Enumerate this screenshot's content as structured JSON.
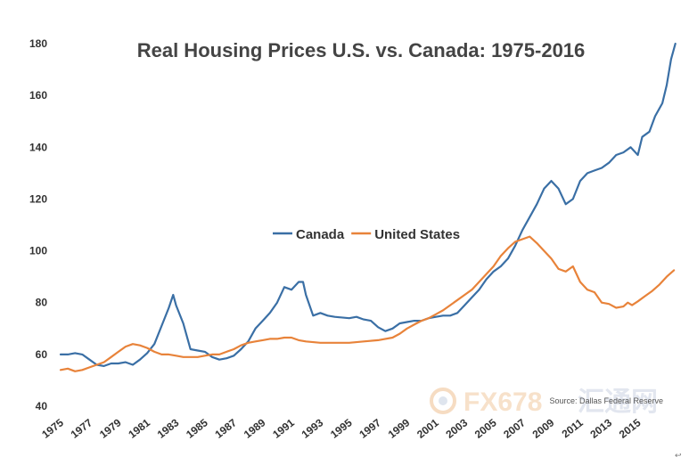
{
  "chart_data": {
    "type": "line",
    "title": "Real Housing Prices U.S. vs. Canada: 1975-2016",
    "xlabel": "",
    "ylabel": "",
    "xlim": [
      1975,
      2017
    ],
    "ylim": [
      40,
      180
    ],
    "y_ticks": [
      40,
      60,
      80,
      100,
      120,
      140,
      160,
      180
    ],
    "x_ticks": [
      1975,
      1977,
      1979,
      1981,
      1983,
      1985,
      1987,
      1989,
      1991,
      1993,
      1995,
      1997,
      1999,
      2001,
      2003,
      2005,
      2007,
      2009,
      2011,
      2013,
      2015
    ],
    "x_tick_labels": [
      "1975",
      "1977",
      "1979",
      "1981",
      "1983",
      "1985",
      "1987",
      "1989",
      "1991",
      "1993",
      "1995",
      "1997",
      "1999",
      "2001",
      "2003",
      "2005",
      "2007",
      "2009",
      "2011",
      "2013",
      "2015"
    ],
    "grid": false,
    "legend_position": "center",
    "source": "Source: Dallas Federal Reserve",
    "series": [
      {
        "name": "Canada",
        "color": "#3a6fa5",
        "points": [
          [
            1975.0,
            60
          ],
          [
            1975.5,
            60
          ],
          [
            1976.0,
            60.5
          ],
          [
            1976.5,
            60
          ],
          [
            1977.0,
            58
          ],
          [
            1977.5,
            56
          ],
          [
            1978.0,
            55.5
          ],
          [
            1978.5,
            56.5
          ],
          [
            1979.0,
            56.5
          ],
          [
            1979.5,
            57
          ],
          [
            1980.0,
            56
          ],
          [
            1980.5,
            58
          ],
          [
            1981.0,
            60.5
          ],
          [
            1981.5,
            64
          ],
          [
            1982.0,
            71
          ],
          [
            1982.5,
            78
          ],
          [
            1982.8,
            83
          ],
          [
            1983.0,
            79
          ],
          [
            1983.5,
            72
          ],
          [
            1984.0,
            62
          ],
          [
            1984.5,
            61.5
          ],
          [
            1985.0,
            61
          ],
          [
            1985.5,
            59
          ],
          [
            1986.0,
            58
          ],
          [
            1986.5,
            58.5
          ],
          [
            1987.0,
            59.5
          ],
          [
            1987.5,
            62
          ],
          [
            1988.0,
            65
          ],
          [
            1988.5,
            70
          ],
          [
            1989.0,
            73
          ],
          [
            1989.5,
            76
          ],
          [
            1990.0,
            80
          ],
          [
            1990.5,
            86
          ],
          [
            1991.0,
            85
          ],
          [
            1991.5,
            88
          ],
          [
            1991.8,
            88
          ],
          [
            1992.0,
            83
          ],
          [
            1992.5,
            75
          ],
          [
            1993.0,
            76
          ],
          [
            1993.5,
            75
          ],
          [
            1994.0,
            74.5
          ],
          [
            1995.0,
            74
          ],
          [
            1995.5,
            74.5
          ],
          [
            1996.0,
            73.5
          ],
          [
            1996.5,
            73
          ],
          [
            1997.0,
            70.5
          ],
          [
            1997.5,
            69
          ],
          [
            1998.0,
            70
          ],
          [
            1998.5,
            72
          ],
          [
            1999.0,
            72.5
          ],
          [
            1999.5,
            73
          ],
          [
            2000.0,
            73
          ],
          [
            2000.5,
            74
          ],
          [
            2001.0,
            74.5
          ],
          [
            2001.5,
            75
          ],
          [
            2002.0,
            75
          ],
          [
            2002.5,
            76
          ],
          [
            2003.0,
            79
          ],
          [
            2003.5,
            82
          ],
          [
            2004.0,
            85
          ],
          [
            2004.5,
            89
          ],
          [
            2005.0,
            92
          ],
          [
            2005.5,
            94
          ],
          [
            2006.0,
            97
          ],
          [
            2006.5,
            102
          ],
          [
            2007.0,
            108
          ],
          [
            2007.5,
            113
          ],
          [
            2008.0,
            118
          ],
          [
            2008.5,
            124
          ],
          [
            2009.0,
            127
          ],
          [
            2009.5,
            124
          ],
          [
            2010.0,
            118
          ],
          [
            2010.5,
            120
          ],
          [
            2011.0,
            127
          ],
          [
            2011.5,
            130
          ],
          [
            2012.0,
            131
          ],
          [
            2012.5,
            132
          ],
          [
            2013.0,
            134
          ],
          [
            2013.5,
            137
          ],
          [
            2014.0,
            138
          ],
          [
            2014.5,
            140
          ],
          [
            2015.0,
            137
          ],
          [
            2015.3,
            144
          ],
          [
            2015.8,
            146
          ],
          [
            2016.2,
            152
          ],
          [
            2016.7,
            157
          ],
          [
            2017.0,
            164
          ],
          [
            2017.3,
            174
          ],
          [
            2017.6,
            180
          ]
        ]
      },
      {
        "name": "United States",
        "color": "#e8833a",
        "points": [
          [
            1975.0,
            54
          ],
          [
            1975.5,
            54.5
          ],
          [
            1976.0,
            53.5
          ],
          [
            1976.5,
            54
          ],
          [
            1977.0,
            55
          ],
          [
            1977.5,
            56
          ],
          [
            1978.0,
            57
          ],
          [
            1978.5,
            59
          ],
          [
            1979.0,
            61
          ],
          [
            1979.5,
            63
          ],
          [
            1980.0,
            64
          ],
          [
            1980.5,
            63.5
          ],
          [
            1981.0,
            62.5
          ],
          [
            1981.5,
            61
          ],
          [
            1982.0,
            60
          ],
          [
            1982.5,
            60
          ],
          [
            1983.0,
            59.5
          ],
          [
            1983.5,
            59
          ],
          [
            1984.0,
            59
          ],
          [
            1984.5,
            59
          ],
          [
            1985.0,
            59.5
          ],
          [
            1985.5,
            60
          ],
          [
            1986.0,
            60
          ],
          [
            1986.5,
            61
          ],
          [
            1987.0,
            62
          ],
          [
            1987.5,
            63.5
          ],
          [
            1988.0,
            64.5
          ],
          [
            1988.5,
            65
          ],
          [
            1989.0,
            65.5
          ],
          [
            1989.5,
            66
          ],
          [
            1990.0,
            66
          ],
          [
            1990.5,
            66.5
          ],
          [
            1991.0,
            66.5
          ],
          [
            1991.5,
            65.5
          ],
          [
            1992.0,
            65
          ],
          [
            1993.0,
            64.5
          ],
          [
            1994.0,
            64.5
          ],
          [
            1995.0,
            64.5
          ],
          [
            1996.0,
            65
          ],
          [
            1997.0,
            65.5
          ],
          [
            1998.0,
            66.5
          ],
          [
            1998.5,
            68
          ],
          [
            1999.0,
            70
          ],
          [
            1999.5,
            71.5
          ],
          [
            2000.0,
            73
          ],
          [
            2000.5,
            74
          ],
          [
            2001.0,
            75.5
          ],
          [
            2001.5,
            77
          ],
          [
            2002.0,
            79
          ],
          [
            2002.5,
            81
          ],
          [
            2003.0,
            83
          ],
          [
            2003.5,
            85
          ],
          [
            2004.0,
            88
          ],
          [
            2004.5,
            91
          ],
          [
            2005.0,
            94
          ],
          [
            2005.5,
            98
          ],
          [
            2006.0,
            101
          ],
          [
            2006.5,
            103.5
          ],
          [
            2007.0,
            104.5
          ],
          [
            2007.5,
            105.5
          ],
          [
            2008.0,
            103
          ],
          [
            2008.5,
            100
          ],
          [
            2009.0,
            97
          ],
          [
            2009.5,
            93
          ],
          [
            2010.0,
            92
          ],
          [
            2010.5,
            94
          ],
          [
            2011.0,
            88
          ],
          [
            2011.5,
            85
          ],
          [
            2012.0,
            84
          ],
          [
            2012.5,
            80
          ],
          [
            2013.0,
            79.5
          ],
          [
            2013.5,
            78
          ],
          [
            2014.0,
            78.5
          ],
          [
            2014.3,
            80
          ],
          [
            2014.6,
            79
          ],
          [
            2015.0,
            80.5
          ],
          [
            2015.5,
            82.5
          ],
          [
            2016.0,
            84.5
          ],
          [
            2016.5,
            87
          ],
          [
            2017.0,
            90
          ],
          [
            2017.5,
            92.5
          ]
        ]
      }
    ]
  },
  "watermark": {
    "text_latin": "FX678",
    "text_cjk": "汇通网"
  },
  "footer_glyph": "↩"
}
